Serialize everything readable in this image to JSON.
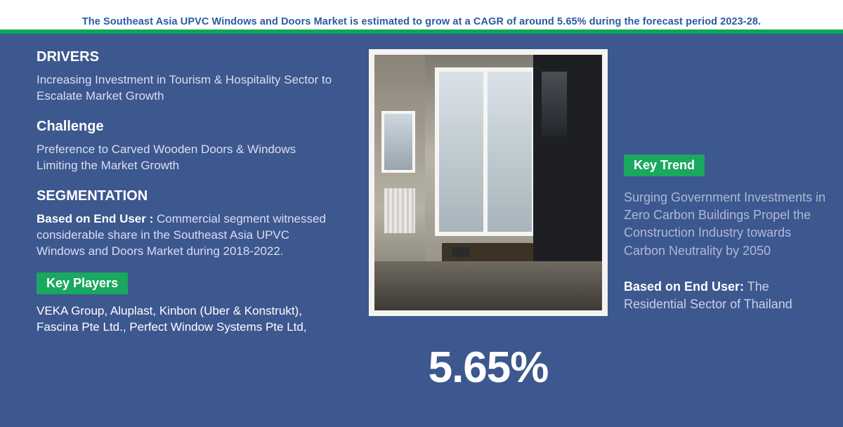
{
  "colors": {
    "page_bg": "#3d578f",
    "accent_green": "#0aa84f",
    "pill_green": "#1aa85f",
    "banner_text": "#2a5aa5",
    "heading_text": "#ffffff",
    "body_text": "#d9dff0",
    "trend_text": "#aeb8d4",
    "pct_text": "#ffffff"
  },
  "banner": {
    "text": "The Southeast Asia UPVC Windows and Doors Market is estimated to grow at a CAGR of around 5.65% during the forecast period 2023-28."
  },
  "left": {
    "drivers_heading": "DRIVERS",
    "drivers_text": "Increasing Investment in Tourism & Hospitality Sector to Escalate Market Growth",
    "challenge_heading": "Challenge",
    "challenge_text": "Preference to Carved Wooden Doors & Windows Limiting the Market Growth",
    "segmentation_heading": "SEGMENTATION",
    "segmentation_label": "Based on End User :",
    "segmentation_text": " Commercial segment witnessed considerable share in the Southeast Asia UPVC Windows and Doors Market during 2018-2022.",
    "players_pill": "Key Players",
    "players_text": "VEKA Group, Aluplast, Kinbon (Uber & Konstrukt), Fascina Pte Ltd., Perfect Window Systems Pte Ltd,"
  },
  "mid": {
    "pct": "5.65%"
  },
  "right": {
    "trend_pill": "Key Trend",
    "trend_text": "Surging Government Investments in Zero Carbon Buildings Propel the Construction Industry towards Carbon Neutrality by 2050",
    "enduser_label": "Based on End User:",
    "enduser_text": "   The Residential Sector of Thailand"
  }
}
